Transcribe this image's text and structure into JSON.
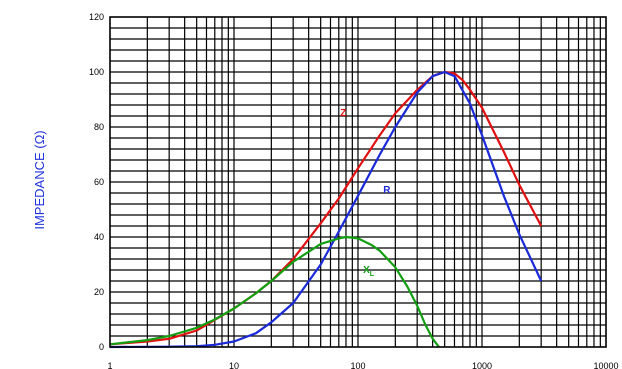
{
  "chart_data": {
    "type": "line",
    "x_scale": "log",
    "xlim": [
      1,
      10000
    ],
    "ylim": [
      0,
      120
    ],
    "grid": true,
    "ylabel": "IMPEDANCE (Ω)",
    "ylabel_color": "#2233dd",
    "x_tick_labels": [
      "1",
      "10",
      "100",
      "1000",
      "10000"
    ],
    "x_tick_values": [
      1,
      10,
      100,
      1000,
      10000
    ],
    "y_tick_labels": [
      "0",
      "20",
      "40",
      "60",
      "80",
      "100",
      "120"
    ],
    "y_tick_values": [
      0,
      20,
      40,
      60,
      80,
      100,
      120
    ],
    "series": [
      {
        "name": "Z",
        "color": "#e01010",
        "label_at": [
          72,
          84
        ],
        "x": [
          1,
          2,
          3,
          5,
          10,
          15,
          20,
          30,
          50,
          70,
          100,
          150,
          200,
          300,
          400,
          500,
          600,
          700,
          800,
          1000,
          1500,
          2000,
          3000
        ],
        "y": [
          1,
          2,
          3,
          6,
          14,
          19.5,
          24,
          32,
          45,
          54,
          65,
          77,
          85,
          93.5,
          98.5,
          100,
          99.5,
          97,
          93.5,
          87,
          71,
          59,
          44
        ]
      },
      {
        "name": "R",
        "color": "#1a2ad8",
        "label_at": [
          160,
          56
        ],
        "x": [
          1,
          3,
          5,
          7,
          10,
          15,
          20,
          30,
          50,
          70,
          100,
          150,
          200,
          300,
          400,
          500,
          600,
          800,
          1000,
          1500,
          2000,
          3000
        ],
        "y": [
          0,
          0.1,
          0.3,
          0.8,
          2,
          5,
          9,
          16,
          30,
          42,
          55,
          70,
          80,
          92.5,
          98.5,
          100,
          98.5,
          88.5,
          77,
          55,
          41,
          24
        ]
      },
      {
        "name": "XL",
        "color": "#12a012",
        "label_at": [
          110,
          27
        ],
        "x": [
          1,
          2,
          3,
          5,
          7,
          10,
          15,
          20,
          30,
          50,
          70,
          80,
          100,
          130,
          150,
          200,
          250,
          300,
          350,
          400,
          450
        ],
        "y": [
          1,
          2.5,
          4,
          7,
          10,
          14,
          19.5,
          24,
          31,
          37.5,
          39.5,
          40,
          39.5,
          37,
          35,
          29,
          22,
          15,
          8,
          3,
          0
        ]
      }
    ]
  }
}
